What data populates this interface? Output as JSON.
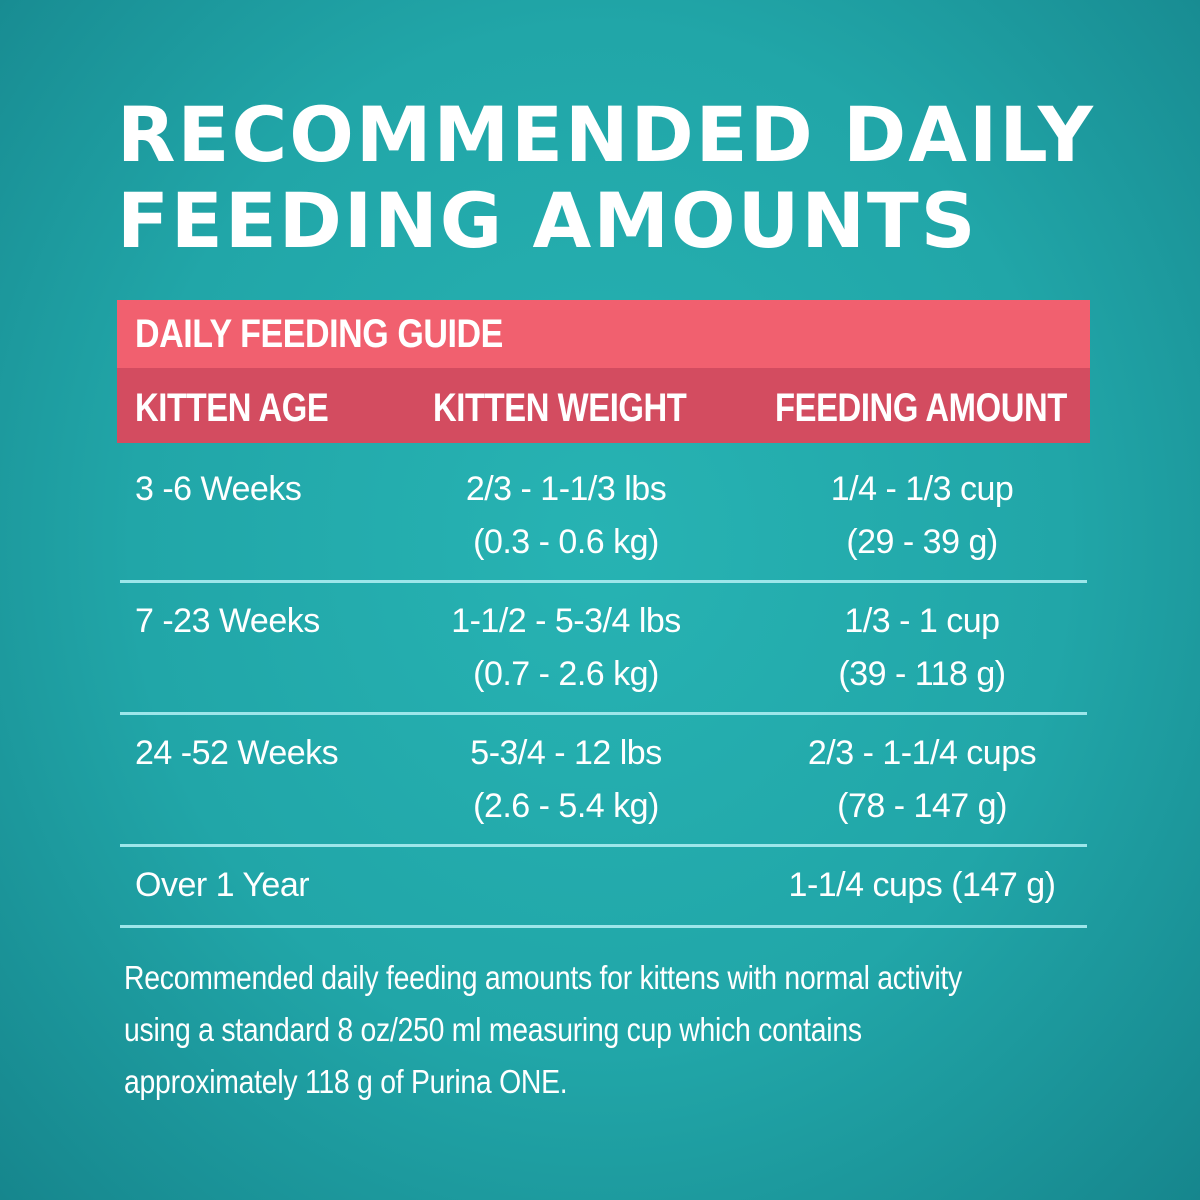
{
  "title": [
    "RECOMMENDED DAILY",
    "FEEDING AMOUNTS"
  ],
  "guide": {
    "heading": "DAILY FEEDING GUIDE",
    "columns": [
      "KITTEN AGE",
      "KITTEN WEIGHT",
      "FEEDING AMOUNT"
    ],
    "rows": [
      {
        "age": "3 -6 Weeks",
        "weight": [
          "2/3 - 1-1/3 lbs",
          "(0.3 - 0.6 kg)"
        ],
        "amount": [
          "1/4 - 1/3 cup",
          "(29 - 39 g)"
        ]
      },
      {
        "age": "7 -23 Weeks",
        "weight": [
          "1-1/2 - 5-3/4 lbs",
          "(0.7 - 2.6 kg)"
        ],
        "amount": [
          "1/3 - 1 cup",
          "(39 - 118 g)"
        ]
      },
      {
        "age": "24 -52 Weeks",
        "weight": [
          "5-3/4 - 12 lbs",
          "(2.6 - 5.4 kg)"
        ],
        "amount": [
          "2/3 - 1-1/4 cups",
          "(78 - 147 g)"
        ]
      },
      {
        "age": "Over 1 Year",
        "weight": [
          "",
          ""
        ],
        "amount": [
          "1-1/4 cups (147 g)",
          ""
        ]
      }
    ]
  },
  "footnote": [
    "Recommended daily feeding amounts for kittens with normal activity",
    "using a standard 8 oz/250 ml measuring cup which contains",
    "approximately 118 g of Purina ONE."
  ],
  "colors": {
    "background": "#21a6a8",
    "band": "#f1606f",
    "subheader": "#d34c60",
    "divider": "#9de6ea"
  }
}
